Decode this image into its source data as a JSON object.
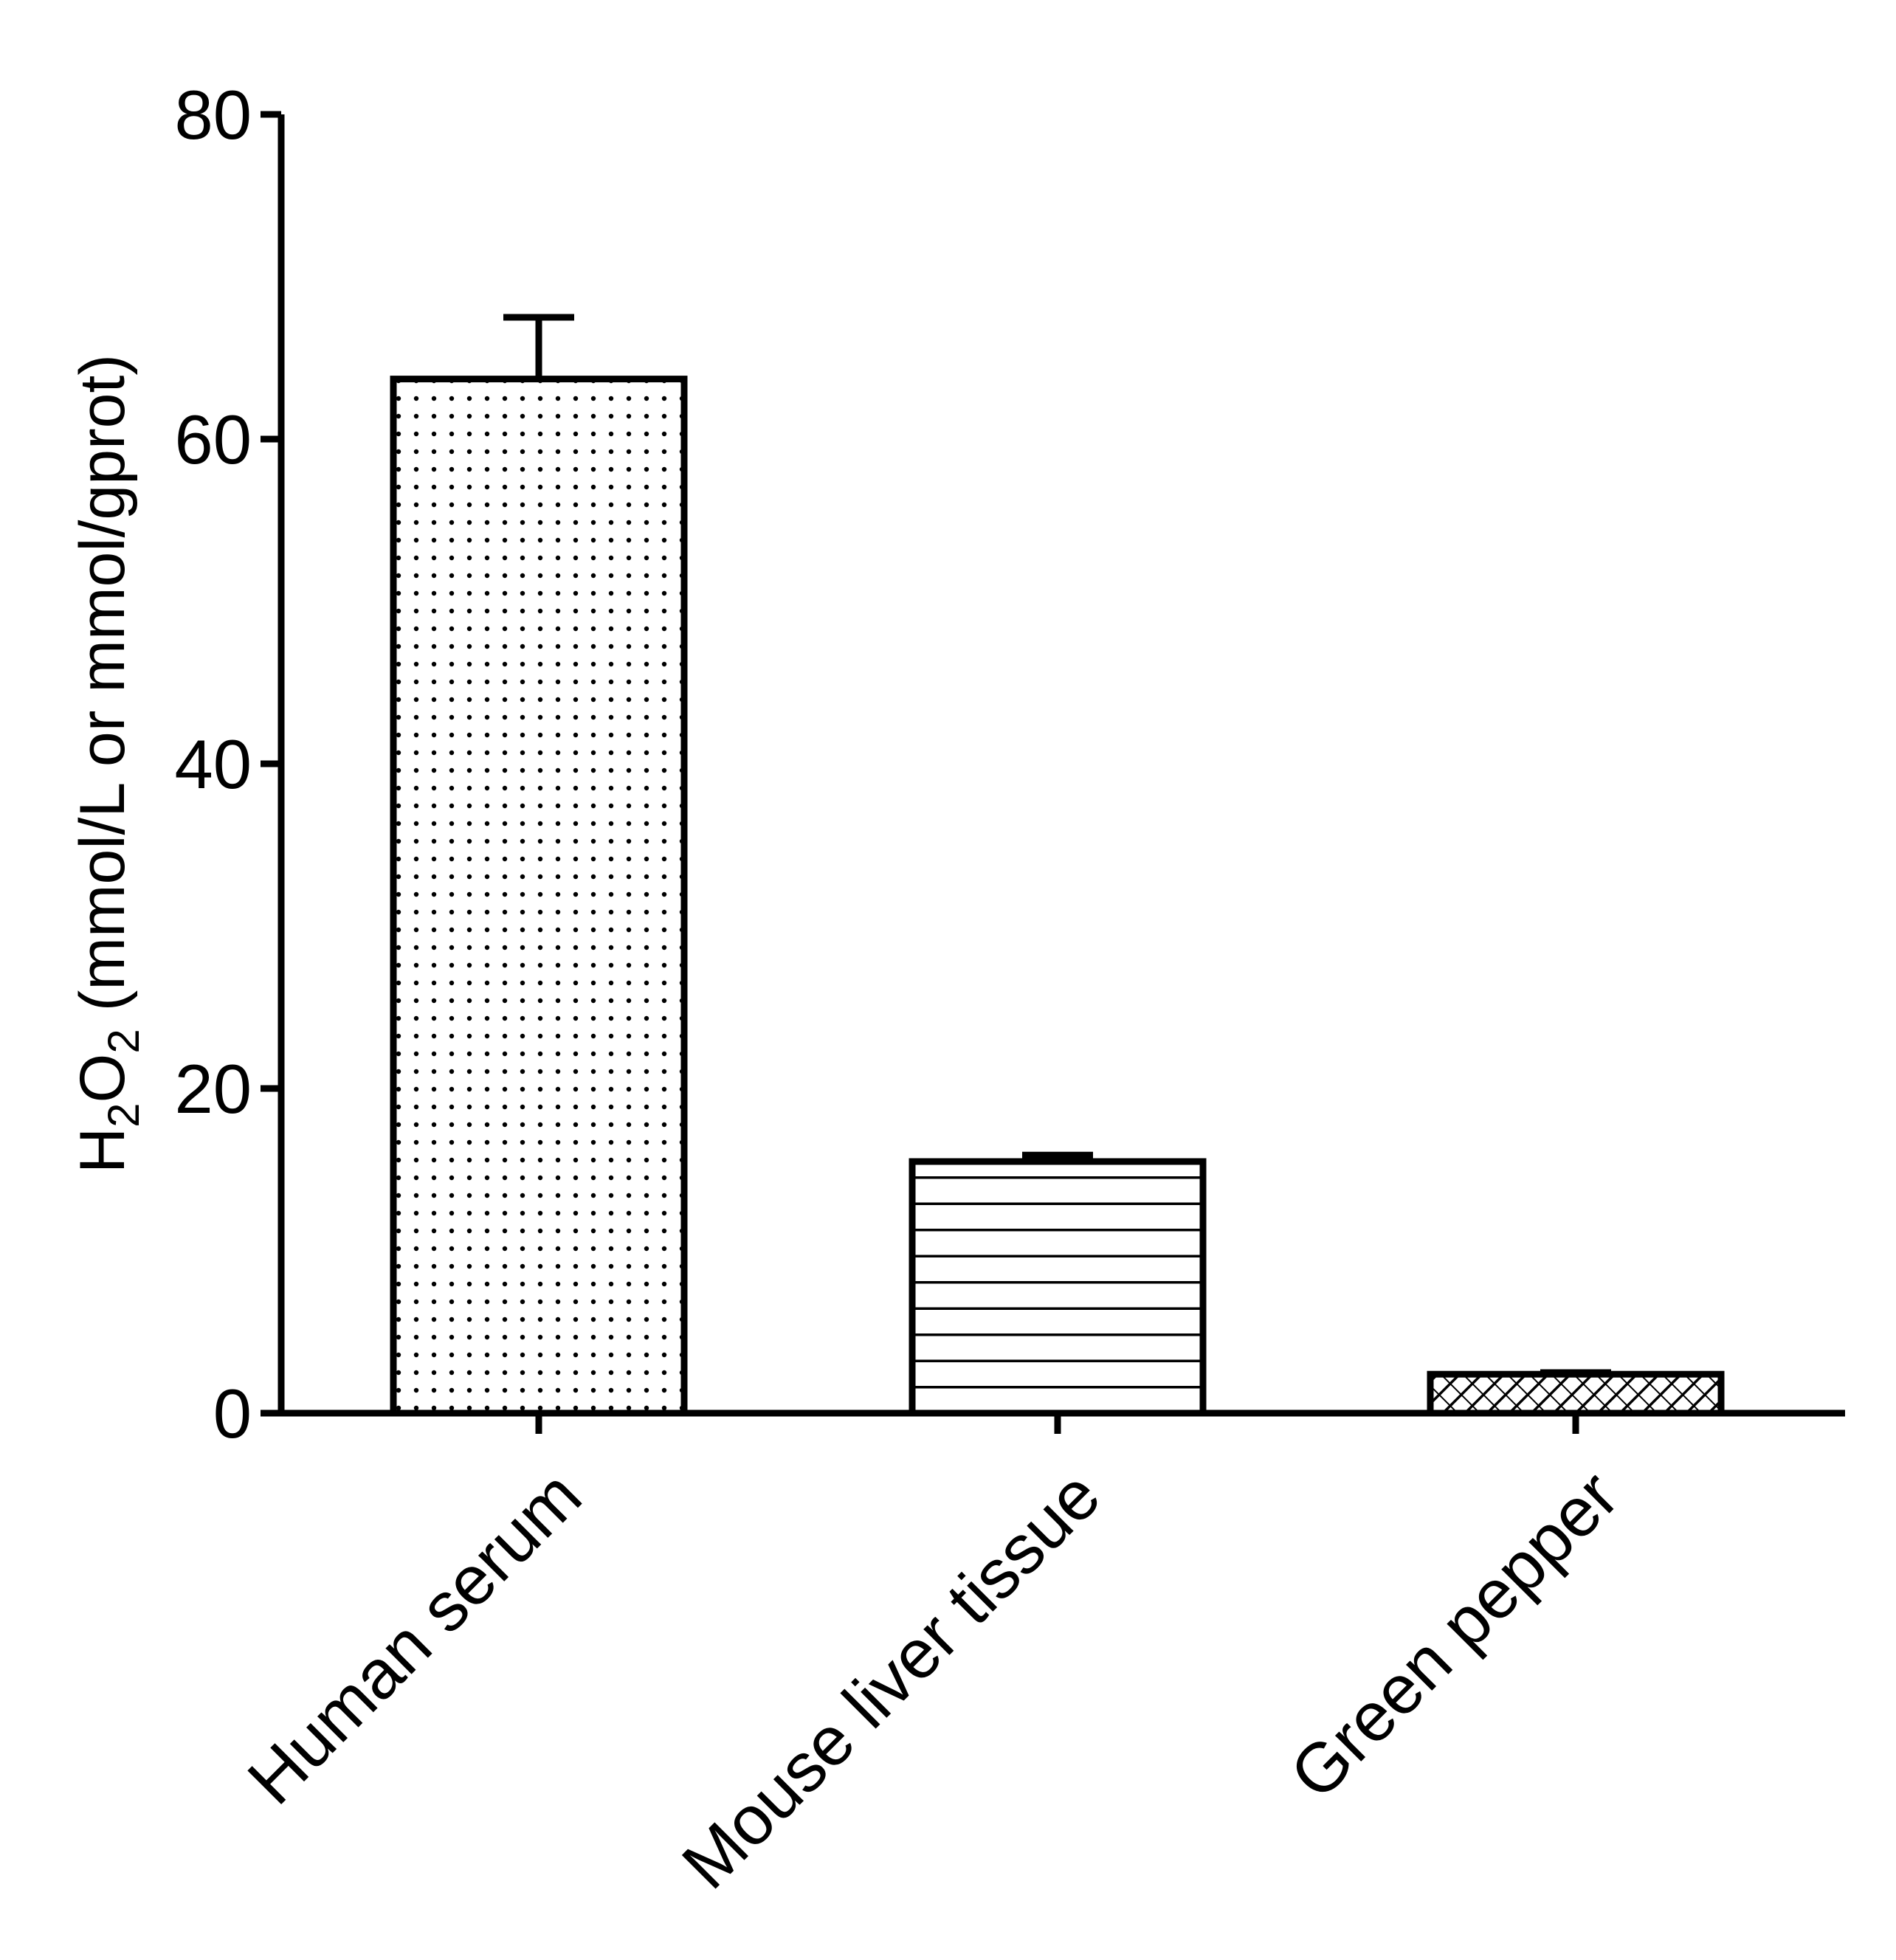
{
  "chart_data": {
    "type": "bar",
    "categories": [
      "Human serum",
      "Mouse liver tissue",
      "Green pepper"
    ],
    "values": [
      63.7,
      15.5,
      2.4
    ],
    "errors": [
      3.8,
      0.4,
      0.1
    ],
    "patterns": [
      "dots",
      "horizontal-lines",
      "diagonal-hatch"
    ],
    "ylim": [
      0,
      80
    ],
    "yticks": [
      0,
      20,
      40,
      60,
      80
    ],
    "ylabel": {
      "prefix": "H",
      "sub1": "2",
      "mid": "O",
      "sub2": "2",
      "suffix": " (mmol/L or mmol/gprot)"
    },
    "xlabel": "",
    "grid": false
  }
}
